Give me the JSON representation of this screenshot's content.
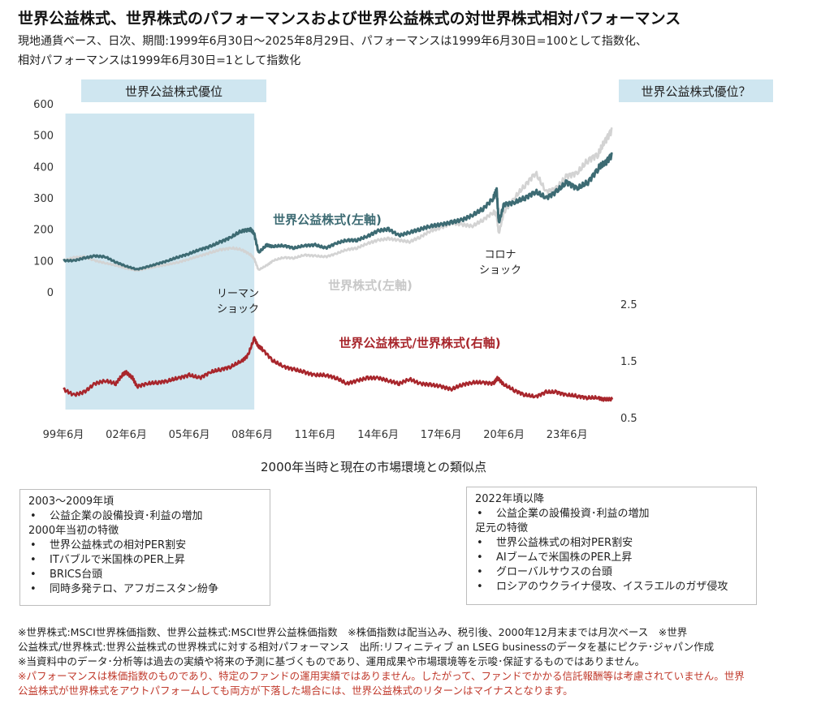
{
  "title": "世界公益株式、世界株式のパフォーマンスおよび世界公益株式の対世界株式相対パフォーマンス",
  "subtitle_line1": "現地通貨ベース、日次、期間:1999年6月30日～2025年8月29日、パフォーマンスは1999年6月30日=100として指数化、",
  "subtitle_line2": "相対パフォーマンスは1999年6月30日=1として指数化",
  "chart_data": {
    "type": "line",
    "x_tick_labels": [
      "99年6月",
      "02年6月",
      "05年6月",
      "08年6月",
      "11年6月",
      "14年6月",
      "17年6月",
      "20年6月",
      "23年6月"
    ],
    "x_range": [
      1999.5,
      2025.66
    ],
    "left_axis": {
      "ticks": [
        "0",
        "100",
        "200",
        "300",
        "400",
        "500",
        "600"
      ],
      "ylim": [
        0,
        600
      ]
    },
    "right_axis": {
      "ticks": [
        "0.5",
        "1.5",
        "2.5"
      ],
      "ylim": [
        0.5,
        2.5
      ]
    },
    "shaded_period": {
      "start": 1999.6,
      "end": 2008.6,
      "label": "世界公益株式優位",
      "color": "#cfe6f0"
    },
    "right_callout": "世界公益株式優位？",
    "annotations": [
      {
        "text_line1": "リーマン",
        "text_line2": "ショック",
        "x": 2008.7
      },
      {
        "text_line1": "コロナ",
        "text_line2": "ショック",
        "x": 2020.2
      }
    ],
    "series": [
      {
        "name": "世界公益株式(左軸)",
        "axis": "left",
        "color": "#3d6b73",
        "x": [
          1999.5,
          2000.0,
          2000.5,
          2001.0,
          2001.5,
          2002.0,
          2002.5,
          2003.0,
          2003.5,
          2004.0,
          2004.5,
          2005.0,
          2005.5,
          2006.0,
          2006.5,
          2007.0,
          2007.5,
          2008.0,
          2008.4,
          2008.6,
          2008.8,
          2009.2,
          2009.5,
          2010.0,
          2010.5,
          2011.0,
          2011.5,
          2012.0,
          2012.5,
          2013.0,
          2013.5,
          2014.0,
          2014.5,
          2015.0,
          2015.5,
          2016.0,
          2016.5,
          2017.0,
          2017.5,
          2018.0,
          2018.5,
          2019.0,
          2019.5,
          2020.0,
          2020.15,
          2020.25,
          2020.5,
          2021.0,
          2021.5,
          2022.0,
          2022.5,
          2023.0,
          2023.5,
          2024.0,
          2024.5,
          2025.0,
          2025.3,
          2025.66
        ],
        "values": [
          100,
          100,
          108,
          115,
          112,
          95,
          82,
          72,
          80,
          90,
          100,
          112,
          122,
          135,
          145,
          160,
          175,
          195,
          200,
          185,
          125,
          150,
          145,
          148,
          140,
          148,
          150,
          140,
          155,
          165,
          165,
          178,
          195,
          200,
          180,
          190,
          200,
          210,
          215,
          222,
          230,
          245,
          265,
          300,
          325,
          220,
          280,
          285,
          300,
          320,
          300,
          320,
          350,
          330,
          350,
          395,
          410,
          440
        ]
      },
      {
        "name": "世界株式(左軸)",
        "axis": "left",
        "color": "#d3d3d3",
        "x": [
          1999.5,
          2000.0,
          2000.5,
          2001.0,
          2001.5,
          2002.0,
          2002.5,
          2003.0,
          2003.5,
          2004.0,
          2004.5,
          2005.0,
          2005.5,
          2006.0,
          2006.5,
          2007.0,
          2007.5,
          2008.0,
          2008.4,
          2008.6,
          2008.8,
          2009.2,
          2009.5,
          2010.0,
          2010.5,
          2011.0,
          2011.5,
          2012.0,
          2012.5,
          2013.0,
          2013.5,
          2014.0,
          2014.5,
          2015.0,
          2015.5,
          2016.0,
          2016.5,
          2017.0,
          2017.5,
          2018.0,
          2018.5,
          2019.0,
          2019.5,
          2020.0,
          2020.15,
          2020.25,
          2020.5,
          2021.0,
          2021.5,
          2022.0,
          2022.5,
          2023.0,
          2023.5,
          2024.0,
          2024.5,
          2025.0,
          2025.3,
          2025.66
        ],
        "values": [
          100,
          110,
          112,
          100,
          92,
          85,
          75,
          68,
          75,
          82,
          88,
          95,
          105,
          115,
          125,
          135,
          140,
          135,
          120,
          105,
          70,
          85,
          100,
          110,
          108,
          118,
          115,
          112,
          122,
          135,
          140,
          155,
          165,
          170,
          165,
          160,
          175,
          195,
          205,
          220,
          215,
          210,
          230,
          255,
          245,
          185,
          255,
          300,
          340,
          380,
          320,
          330,
          370,
          380,
          420,
          440,
          480,
          520
        ]
      },
      {
        "name": "世界公益株式/世界株式(右軸)",
        "axis": "right",
        "color": "#a8262c",
        "x": [
          1999.5,
          2000.0,
          2000.5,
          2001.0,
          2001.5,
          2002.0,
          2002.3,
          2002.5,
          2002.8,
          2003.0,
          2003.5,
          2004.0,
          2004.5,
          2005.0,
          2005.5,
          2006.0,
          2006.5,
          2007.0,
          2007.5,
          2008.0,
          2008.3,
          2008.6,
          2008.8,
          2009.0,
          2009.5,
          2010.0,
          2010.5,
          2011.0,
          2011.5,
          2012.0,
          2012.5,
          2013.0,
          2013.5,
          2014.0,
          2014.5,
          2015.0,
          2015.5,
          2016.0,
          2016.5,
          2017.0,
          2017.5,
          2018.0,
          2018.5,
          2019.0,
          2019.5,
          2020.0,
          2020.2,
          2020.5,
          2021.0,
          2021.5,
          2022.0,
          2022.5,
          2023.0,
          2023.5,
          2024.0,
          2024.5,
          2025.0,
          2025.3,
          2025.66
        ],
        "values": [
          1.0,
          0.9,
          0.95,
          1.1,
          1.15,
          1.1,
          1.25,
          1.3,
          1.2,
          1.05,
          1.1,
          1.12,
          1.15,
          1.2,
          1.25,
          1.2,
          1.3,
          1.35,
          1.4,
          1.5,
          1.6,
          1.9,
          1.75,
          1.7,
          1.5,
          1.4,
          1.35,
          1.3,
          1.25,
          1.25,
          1.2,
          1.1,
          1.15,
          1.2,
          1.2,
          1.15,
          1.1,
          1.18,
          1.1,
          1.08,
          1.05,
          1.0,
          1.08,
          1.12,
          1.12,
          1.1,
          1.2,
          1.08,
          0.98,
          0.9,
          0.87,
          0.95,
          0.95,
          0.9,
          0.88,
          0.85,
          0.85,
          0.82,
          0.82
        ]
      }
    ],
    "series_labels": [
      {
        "text": "世界公益株式(左軸)",
        "color": "#3d6b73"
      },
      {
        "text": "世界株式(左軸)",
        "color": "#c8c8c8"
      },
      {
        "text": "世界公益株式/世界株式(右軸)",
        "color": "#a8262c"
      }
    ]
  },
  "section_title": "2000年当時と現在の市場環境との類似点",
  "left_box": {
    "lines": [
      {
        "type": "head",
        "text": "2003～2009年頃"
      },
      {
        "type": "bullet",
        "text": "公益企業の設備投資･利益の増加"
      },
      {
        "type": "head",
        "text": "2000年当初の特徴"
      },
      {
        "type": "bullet",
        "text": "世界公益株式の相対PER割安"
      },
      {
        "type": "bullet",
        "text": "ITバブルで米国株のPER上昇"
      },
      {
        "type": "bullet",
        "text": "BRICS台頭"
      },
      {
        "type": "bullet",
        "text": "同時多発テロ、アフガニスタン紛争"
      }
    ]
  },
  "right_box": {
    "lines": [
      {
        "type": "head",
        "text": "2022年頃以降"
      },
      {
        "type": "bullet",
        "text": "公益企業の設備投資･利益の増加"
      },
      {
        "type": "head",
        "text": "足元の特徴"
      },
      {
        "type": "bullet",
        "text": "世界公益株式の相対PER割安"
      },
      {
        "type": "bullet",
        "text": "AIブームで米国株のPER上昇"
      },
      {
        "type": "bullet",
        "text": "グローバルサウスの台頭"
      },
      {
        "type": "bullet",
        "text": "ロシアのウクライナ侵攻、イスラエルのガザ侵攻"
      }
    ]
  },
  "notes": {
    "line1": "※世界株式:MSCI世界株価指数、世界公益株式:MSCI世界公益株価指数　※株価指数は配当込み、税引後、2000年12月末までは月次ベース　※世界",
    "line2": "公益株式/世界株式:世界公益株式の世界株式に対する相対パフォーマンス　出所:リフィニティブ an LSEG businessのデータを基にピクテ･ジャパン作成",
    "line3": "※当資料中のデータ･分析等は過去の実績や将来の予測に基づくものであり、運用成果や市場環境等を示唆･保証するものではありません。",
    "red_line1": "※パフォーマンスは株価指数のものであり、特定のファンドの運用実績ではありません。したがって、ファンドでかかる信託報酬等は考慮されていません。世界",
    "red_line2": "公益株式が世界株式をアウトパフォームしても両方が下落した場合には、世界公益株式のリターンはマイナスとなります。"
  }
}
